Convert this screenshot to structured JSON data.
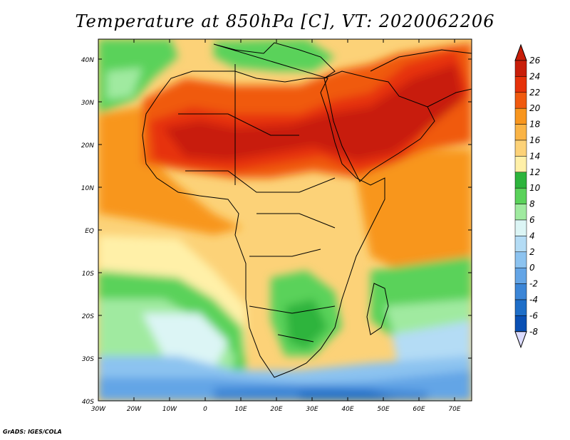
{
  "title": "Temperature at 850hPa [C], VT: 2020062206",
  "credit": "GrADS: IGES/COLA",
  "map": {
    "lon_range": [
      -30,
      75
    ],
    "lat_range": [
      -40,
      45
    ],
    "lat_labels": [
      "40N",
      "30N",
      "20N",
      "10N",
      "EQ",
      "10S",
      "20S",
      "30S",
      "40S"
    ],
    "lon_labels": [
      "30W",
      "20W",
      "10W",
      "0",
      "10E",
      "20E",
      "30E",
      "40E",
      "50E",
      "60E",
      "70E"
    ]
  },
  "colorbar": {
    "labels": [
      "26",
      "24",
      "22",
      "20",
      "18",
      "16",
      "14",
      "12",
      "10",
      "8",
      "6",
      "4",
      "2",
      "0",
      "-2",
      "-4",
      "-6",
      "-8"
    ],
    "colors": [
      "#c81e0a",
      "#e6320a",
      "#f05a0f",
      "#f8961e",
      "#fab446",
      "#fcd278",
      "#fff0a8",
      "#2db43c",
      "#5ad25a",
      "#a0eaa0",
      "#dcf5f5",
      "#b4dcf5",
      "#8cc3f0",
      "#64a5e6",
      "#3c86d7",
      "#1e6ec8",
      "#0a50b4",
      "#102a86"
    ]
  }
}
